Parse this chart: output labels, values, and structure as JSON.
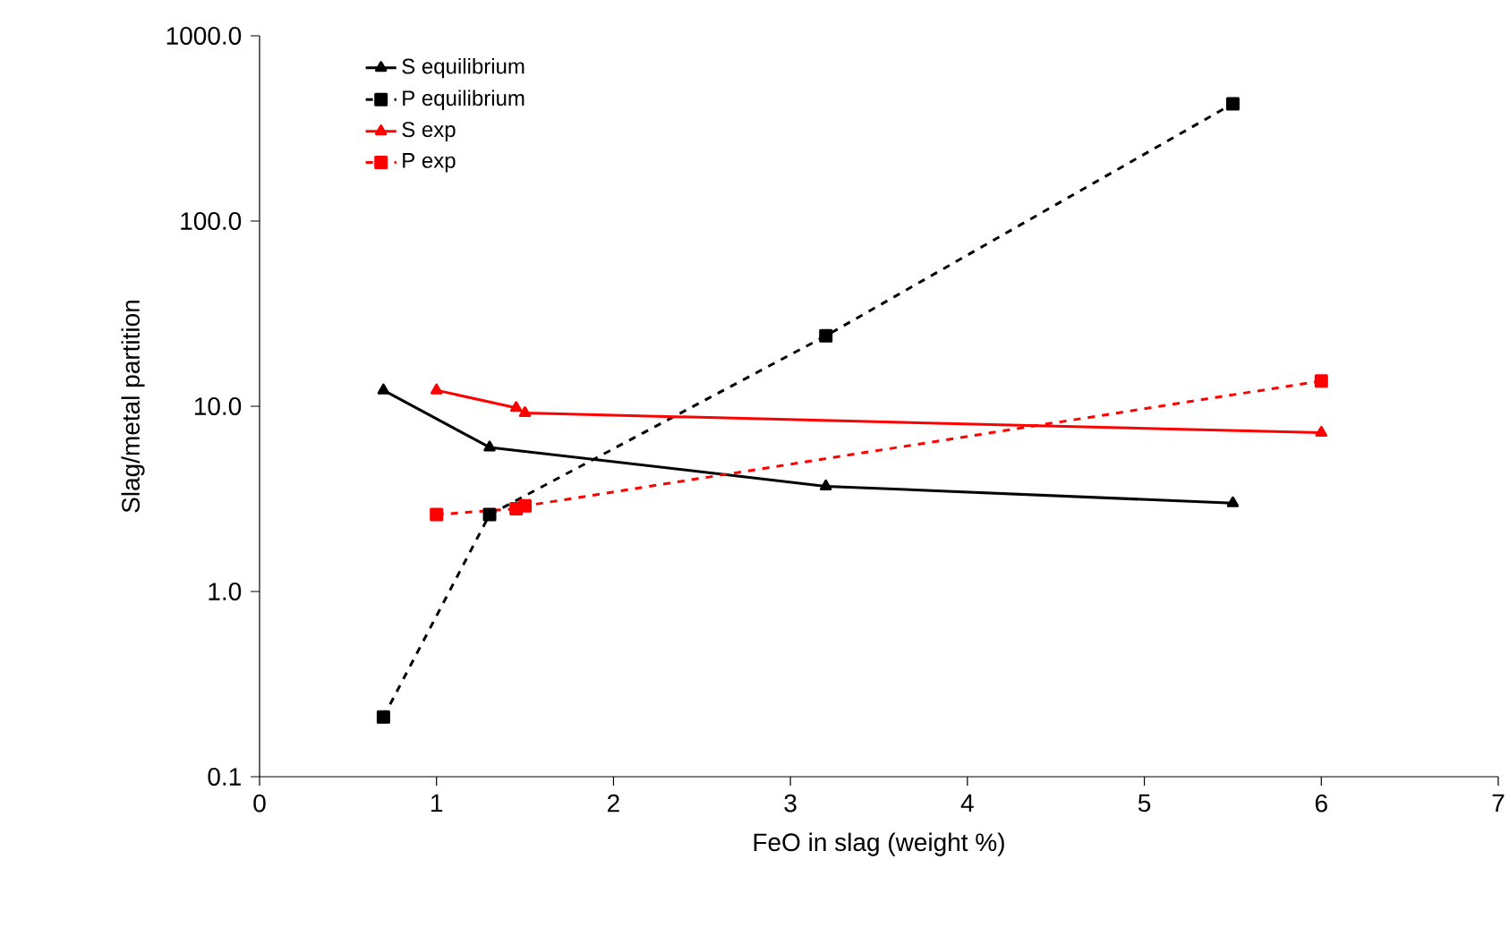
{
  "chart_data": {
    "type": "line",
    "xlabel": "FeO in slag (weight %)",
    "ylabel": "Slag/metal partition",
    "log": "y",
    "xlim": [
      0,
      7
    ],
    "xticks": [
      0,
      1,
      2,
      3,
      4,
      5,
      6,
      7
    ],
    "ylim": [
      0.1,
      1000
    ],
    "yticks": [
      {
        "value": 0.1,
        "label": "0.1"
      },
      {
        "value": 1,
        "label": "1.0"
      },
      {
        "value": 10,
        "label": "10.0"
      },
      {
        "value": 100,
        "label": "100.0"
      },
      {
        "value": 1000,
        "label": "1000.0"
      }
    ],
    "grid": false,
    "legend": "top left",
    "series": [
      {
        "name": "S equilibrium",
        "color": "#000000",
        "marker": "triangle",
        "line_style": "solid",
        "x": [
          0.7,
          1.3,
          3.2,
          5.5
        ],
        "values": [
          12.2,
          6.0,
          3.7,
          3.0
        ]
      },
      {
        "name": "P equilibrium",
        "color": "#000000",
        "marker": "square",
        "line_style": "dashed",
        "x": [
          0.7,
          1.3,
          3.2,
          5.5
        ],
        "values": [
          0.21,
          2.6,
          24,
          430
        ]
      },
      {
        "name": "S exp",
        "color": "#ff0000",
        "marker": "triangle",
        "line_style": "solid",
        "x": [
          1.0,
          1.45,
          1.5,
          6.0
        ],
        "values": [
          12.2,
          9.8,
          9.2,
          7.2
        ]
      },
      {
        "name": "P exp",
        "color": "#ff0000",
        "marker": "square",
        "line_style": "dashed",
        "x": [
          1.0,
          1.45,
          1.5,
          6.0
        ],
        "values": [
          2.6,
          2.8,
          2.9,
          13.7
        ]
      }
    ]
  }
}
